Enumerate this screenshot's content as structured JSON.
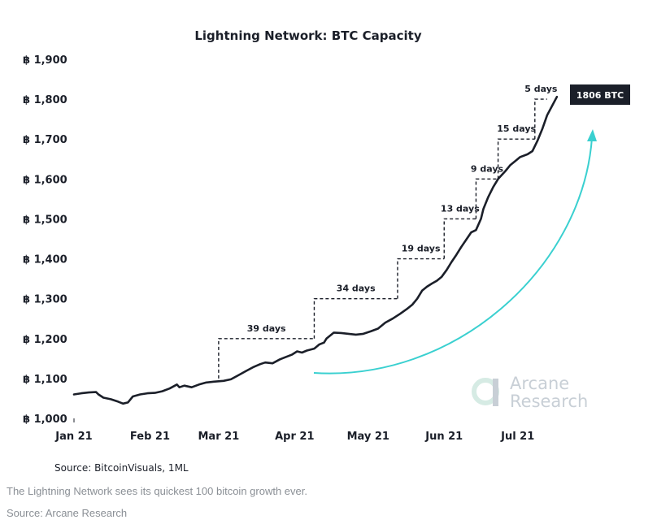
{
  "chart_data": {
    "type": "line",
    "title": "Lightning Network: BTC Capacity",
    "y_tick_labels": [
      "฿ 1,000",
      "฿ 1,100",
      "฿ 1,200",
      "฿ 1,300",
      "฿ 1,400",
      "฿ 1,500",
      "฿ 1,600",
      "฿ 1,700",
      "฿ 1,800",
      "฿ 1,900"
    ],
    "y_ticks": [
      1000,
      1100,
      1200,
      1300,
      1400,
      1500,
      1600,
      1700,
      1800,
      1900
    ],
    "ylim": [
      1000,
      1900
    ],
    "x_tick_labels": [
      "Jan 21",
      "Feb 21",
      "Mar 21",
      "Apr 21",
      "May 21",
      "Jun 21",
      "Jul 21"
    ],
    "x_ticks": [
      "2021-01-01",
      "2021-02-01",
      "2021-03-01",
      "2021-04-01",
      "2021-05-01",
      "2021-06-01",
      "2021-07-01"
    ],
    "xlim": [
      "2021-01-01",
      "2021-07-21"
    ],
    "grid": false,
    "series": [
      {
        "color": "#1b1f29",
        "points": [
          [
            "2021-01-01",
            1060
          ],
          [
            "2021-01-04",
            1063
          ],
          [
            "2021-01-07",
            1065
          ],
          [
            "2021-01-10",
            1066
          ],
          [
            "2021-01-11",
            1060
          ],
          [
            "2021-01-13",
            1052
          ],
          [
            "2021-01-16",
            1048
          ],
          [
            "2021-01-19",
            1042
          ],
          [
            "2021-01-21",
            1037
          ],
          [
            "2021-01-23",
            1040
          ],
          [
            "2021-01-25",
            1055
          ],
          [
            "2021-01-28",
            1060
          ],
          [
            "2021-01-31",
            1063
          ],
          [
            "2021-02-03",
            1064
          ],
          [
            "2021-02-06",
            1068
          ],
          [
            "2021-02-09",
            1075
          ],
          [
            "2021-02-12",
            1085
          ],
          [
            "2021-02-13",
            1078
          ],
          [
            "2021-02-15",
            1082
          ],
          [
            "2021-02-18",
            1078
          ],
          [
            "2021-02-21",
            1085
          ],
          [
            "2021-02-24",
            1090
          ],
          [
            "2021-02-27",
            1092
          ],
          [
            "2021-03-03",
            1094
          ],
          [
            "2021-03-06",
            1098
          ],
          [
            "2021-03-09",
            1108
          ],
          [
            "2021-03-12",
            1118
          ],
          [
            "2021-03-15",
            1128
          ],
          [
            "2021-03-18",
            1136
          ],
          [
            "2021-03-20",
            1140
          ],
          [
            "2021-03-23",
            1138
          ],
          [
            "2021-03-26",
            1148
          ],
          [
            "2021-03-28",
            1153
          ],
          [
            "2021-03-31",
            1160
          ],
          [
            "2021-04-02",
            1168
          ],
          [
            "2021-04-04",
            1165
          ],
          [
            "2021-04-06",
            1170
          ],
          [
            "2021-04-09",
            1175
          ],
          [
            "2021-04-11",
            1185
          ],
          [
            "2021-04-13",
            1190
          ],
          [
            "2021-04-14",
            1200
          ],
          [
            "2021-04-17",
            1215
          ],
          [
            "2021-04-20",
            1214
          ],
          [
            "2021-04-23",
            1212
          ],
          [
            "2021-04-26",
            1210
          ],
          [
            "2021-04-29",
            1212
          ],
          [
            "2021-05-02",
            1218
          ],
          [
            "2021-05-05",
            1225
          ],
          [
            "2021-05-08",
            1240
          ],
          [
            "2021-05-11",
            1250
          ],
          [
            "2021-05-14",
            1262
          ],
          [
            "2021-05-17",
            1275
          ],
          [
            "2021-05-19",
            1285
          ],
          [
            "2021-05-21",
            1300
          ],
          [
            "2021-05-23",
            1320
          ],
          [
            "2021-05-25",
            1330
          ],
          [
            "2021-05-27",
            1338
          ],
          [
            "2021-05-29",
            1345
          ],
          [
            "2021-05-31",
            1355
          ],
          [
            "2021-06-02",
            1372
          ],
          [
            "2021-06-04",
            1392
          ],
          [
            "2021-06-06",
            1410
          ],
          [
            "2021-06-08",
            1430
          ],
          [
            "2021-06-10",
            1448
          ],
          [
            "2021-06-12",
            1466
          ],
          [
            "2021-06-14",
            1472
          ],
          [
            "2021-06-16",
            1500
          ],
          [
            "2021-06-17",
            1525
          ],
          [
            "2021-06-19",
            1555
          ],
          [
            "2021-06-21",
            1580
          ],
          [
            "2021-06-23",
            1600
          ],
          [
            "2021-06-26",
            1620
          ],
          [
            "2021-06-28",
            1635
          ],
          [
            "2021-06-30",
            1645
          ],
          [
            "2021-07-02",
            1655
          ],
          [
            "2021-07-05",
            1662
          ],
          [
            "2021-07-07",
            1670
          ],
          [
            "2021-07-09",
            1695
          ],
          [
            "2021-07-11",
            1725
          ],
          [
            "2021-07-13",
            1760
          ],
          [
            "2021-07-15",
            1783
          ],
          [
            "2021-07-17",
            1806
          ]
        ]
      }
    ],
    "step_annotations": [
      {
        "label": "39 days",
        "from": "2021-03-01",
        "to": "2021-04-09",
        "y_from": 1100,
        "y_to": 1200
      },
      {
        "label": "34 days",
        "from": "2021-04-09",
        "to": "2021-05-13",
        "y_from": 1200,
        "y_to": 1300
      },
      {
        "label": "19 days",
        "from": "2021-05-13",
        "to": "2021-06-01",
        "y_from": 1300,
        "y_to": 1400
      },
      {
        "label": "13 days",
        "from": "2021-06-01",
        "to": "2021-06-14",
        "y_from": 1400,
        "y_to": 1500
      },
      {
        "label": "9 days",
        "from": "2021-06-14",
        "to": "2021-06-23",
        "y_from": 1500,
        "y_to": 1600
      },
      {
        "label": "15 days",
        "from": "2021-06-23",
        "to": "2021-07-08",
        "y_from": 1600,
        "y_to": 1700
      },
      {
        "label": "5 days",
        "from": "2021-07-08",
        "to": "2021-07-13",
        "y_from": 1700,
        "y_to": 1800
      }
    ],
    "end_badge": "1806 BTC",
    "source": "Source: BitcoinVisuals, 1ML",
    "accent_color": "#3ad0d0",
    "badge_color": "#1b1f29"
  },
  "watermark": {
    "line1": "Arcane",
    "line2": "Research"
  },
  "caption": {
    "text": "The Lightning Network sees its quickest 100 bitcoin growth ever.",
    "source": "Source: Arcane Research"
  }
}
